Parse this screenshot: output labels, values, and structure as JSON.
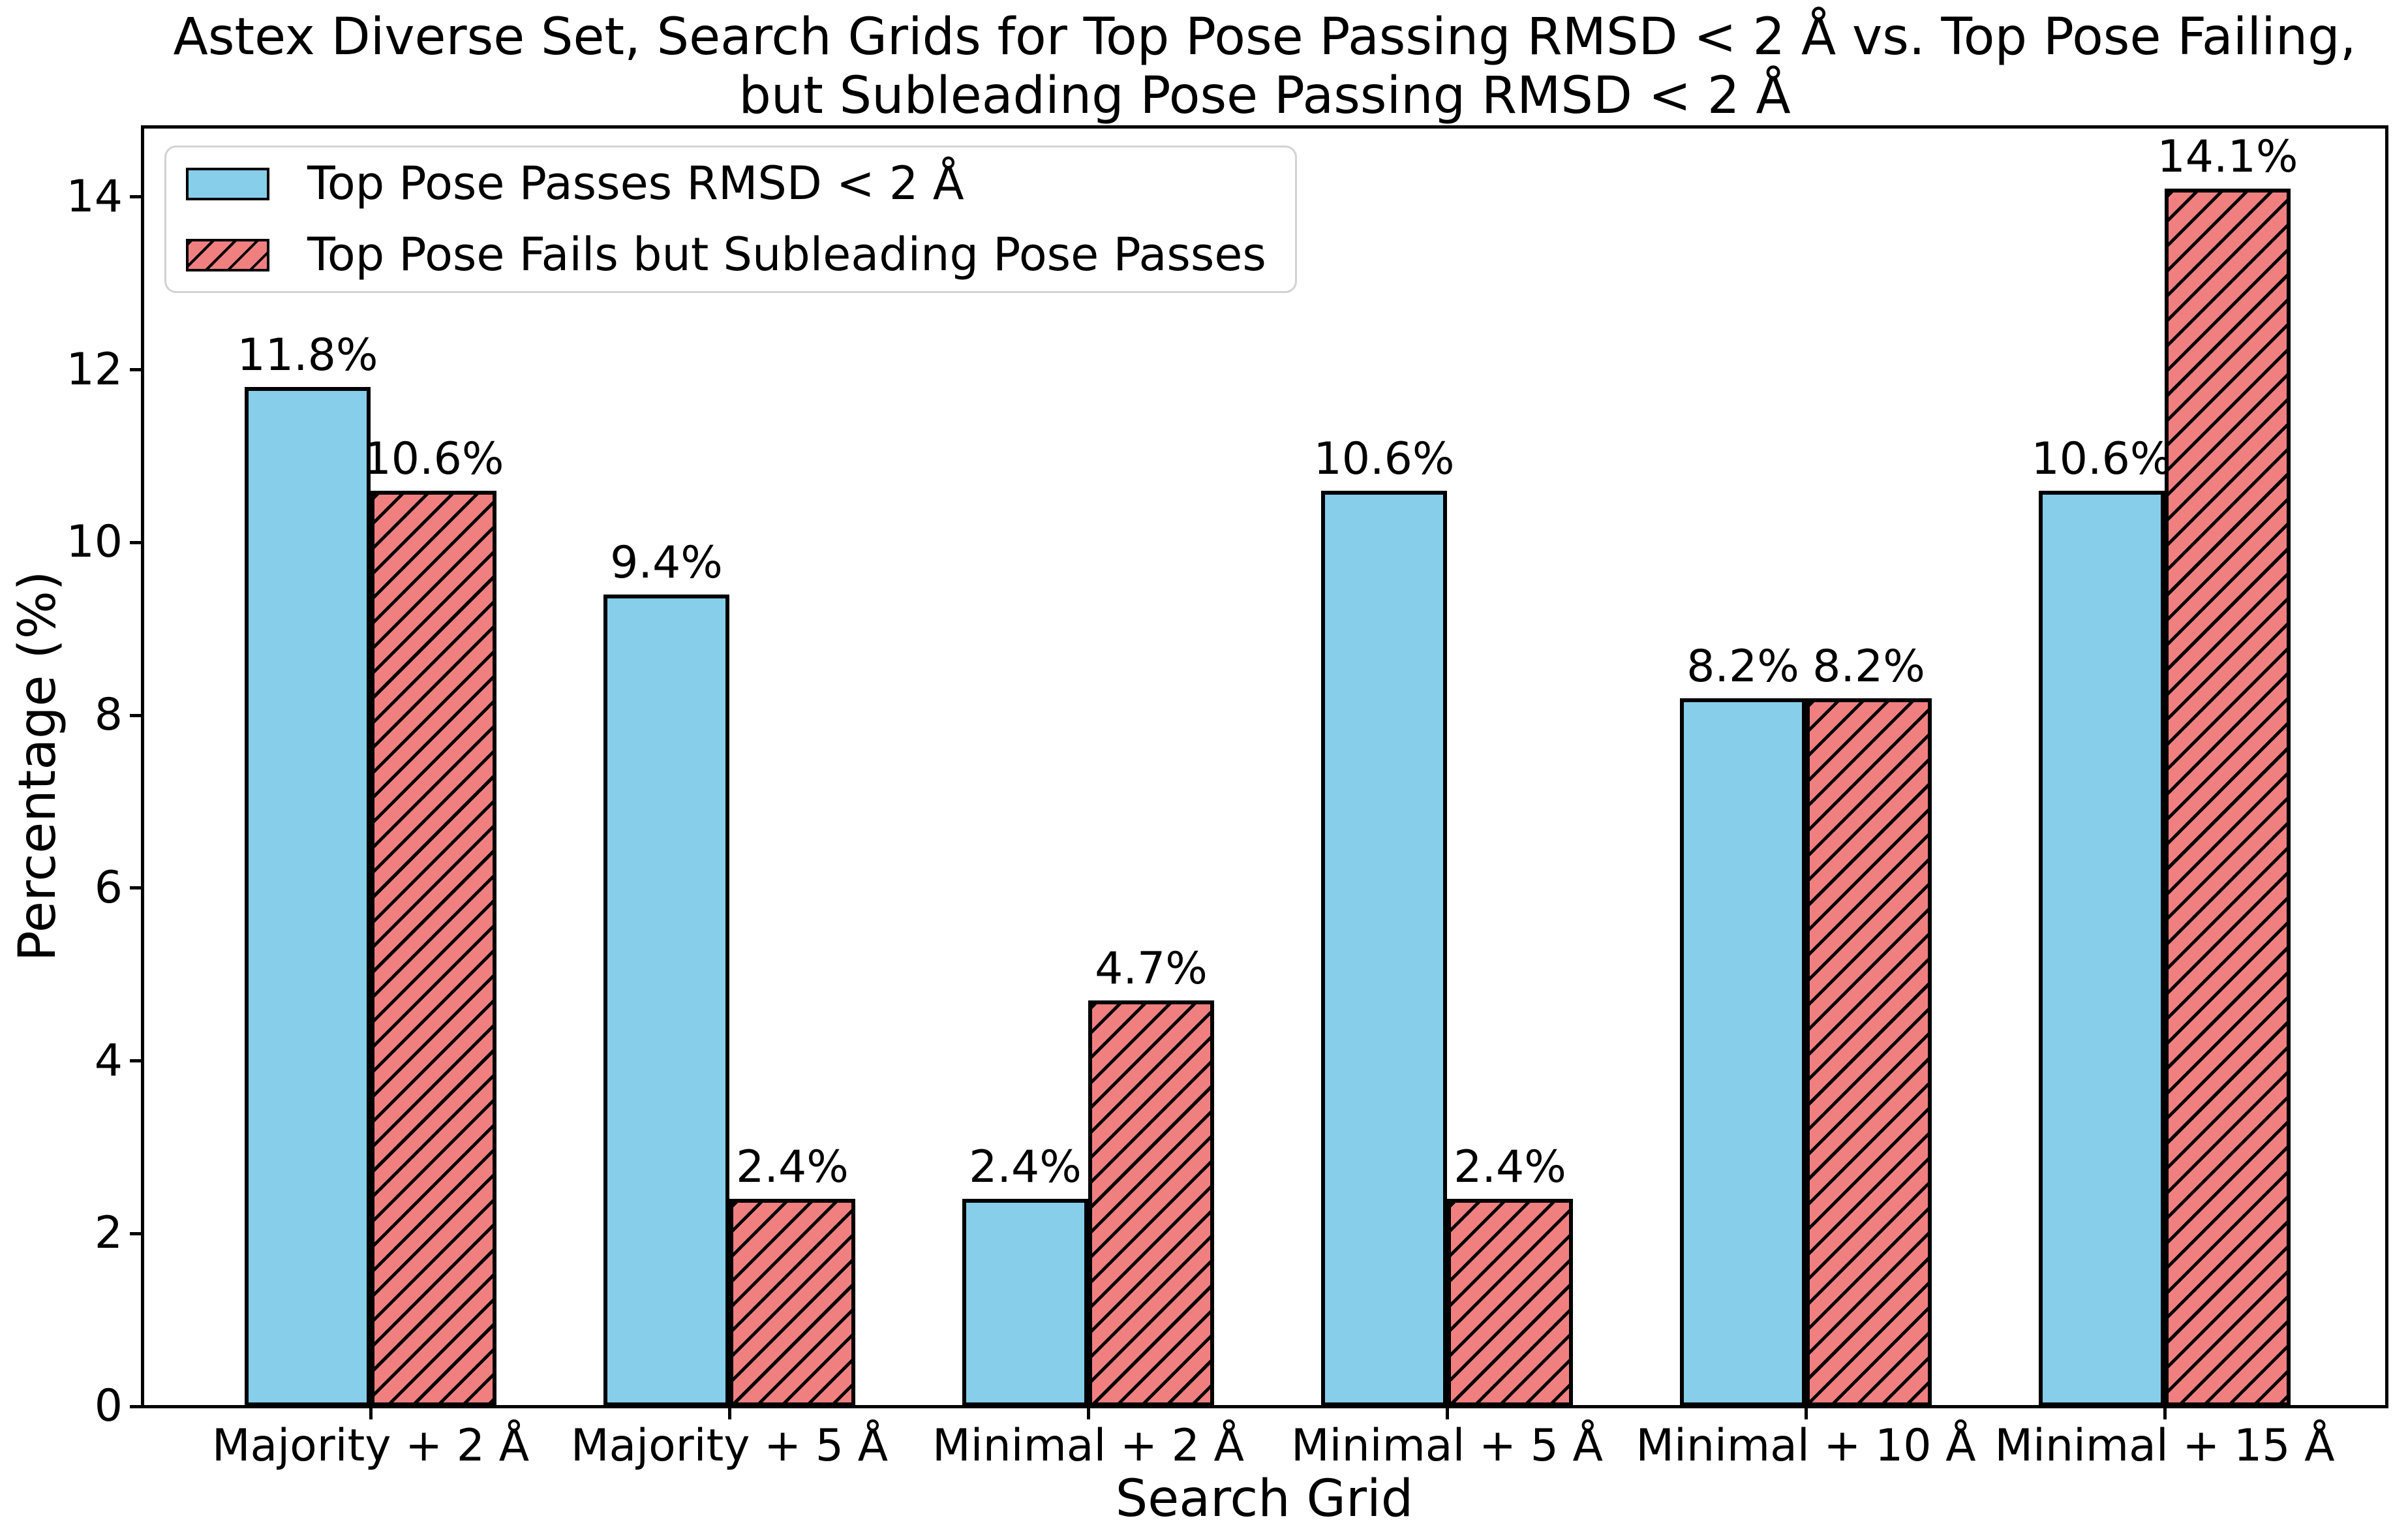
{
  "chart_data": {
    "type": "bar",
    "title": "Astex Diverse Set, Search Grids for Top Pose Passing RMSD < 2 Å vs. Top Pose Failing,\nbut Subleading Pose Passing RMSD < 2 Å",
    "xlabel": "Search Grid",
    "ylabel": "Percentage (%)",
    "categories": [
      "Majority + 2 Å",
      "Majority + 5 Å",
      "Minimal + 2 Å",
      "Minimal + 5 Å",
      "Minimal + 10 Å",
      "Minimal + 15 Å"
    ],
    "series": [
      {
        "name": "Top Pose Passes RMSD < 2 Å",
        "color": "#87CEEB",
        "hatch": "none",
        "values": [
          11.8,
          9.4,
          2.4,
          10.6,
          8.2,
          10.6
        ],
        "value_labels": [
          "11.8%",
          "9.4%",
          "2.4%",
          "10.6%",
          "8.2%",
          "10.6%"
        ]
      },
      {
        "name": "Top Pose Fails but Subleading Pose Passes",
        "color": "#F08080",
        "hatch": "/",
        "values": [
          10.6,
          2.4,
          4.7,
          2.4,
          8.2,
          14.1
        ],
        "value_labels": [
          "10.6%",
          "2.4%",
          "4.7%",
          "2.4%",
          "8.2%",
          "14.1%"
        ]
      }
    ],
    "ylim": [
      0,
      14.83
    ],
    "yticks": [
      0,
      2,
      4,
      6,
      8,
      10,
      12,
      14
    ],
    "legend": {
      "position": "upper left",
      "entries": [
        "Top Pose Passes RMSD < 2 Å",
        "Top Pose Fails but Subleading Pose Passes"
      ]
    },
    "grid": false,
    "bar_edge_color": "#000000",
    "axis_color": "#000000",
    "background_color": "#FFFFFF"
  }
}
